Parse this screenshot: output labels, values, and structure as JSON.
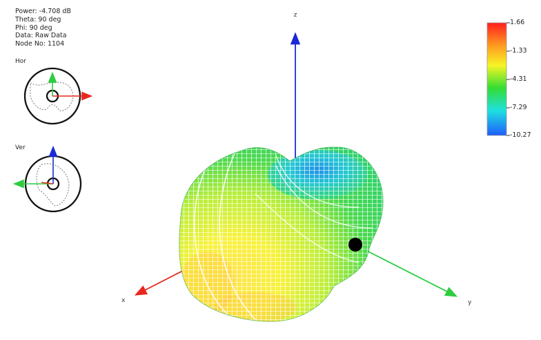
{
  "info": {
    "power": "Power: -4.708 dB",
    "theta": "Theta: 90 deg",
    "phi": "Phi: 90 deg",
    "data": "Data: Raw Data",
    "node": "Node No: 1104"
  },
  "mini_views": {
    "horizontal_label": "Hor",
    "vertical_label": "Ver"
  },
  "axes": {
    "x_label": "x",
    "y_label": "y",
    "z_label": "z",
    "x_color": "#e8281e",
    "y_color": "#2ecc40",
    "z_color": "#1a2ad6"
  },
  "colorbar": {
    "labels": [
      "1.66",
      "-1.33",
      "-4.31",
      "-7.29",
      "-10.27"
    ],
    "max": 1.66,
    "min": -10.27,
    "colors_top_to_bottom": [
      "#ff1f1f",
      "#ff9a1f",
      "#f5f526",
      "#33dd33",
      "#1fe0e0",
      "#1f5cff"
    ]
  },
  "marker": {
    "color": "#000000",
    "name": "selected-node"
  }
}
